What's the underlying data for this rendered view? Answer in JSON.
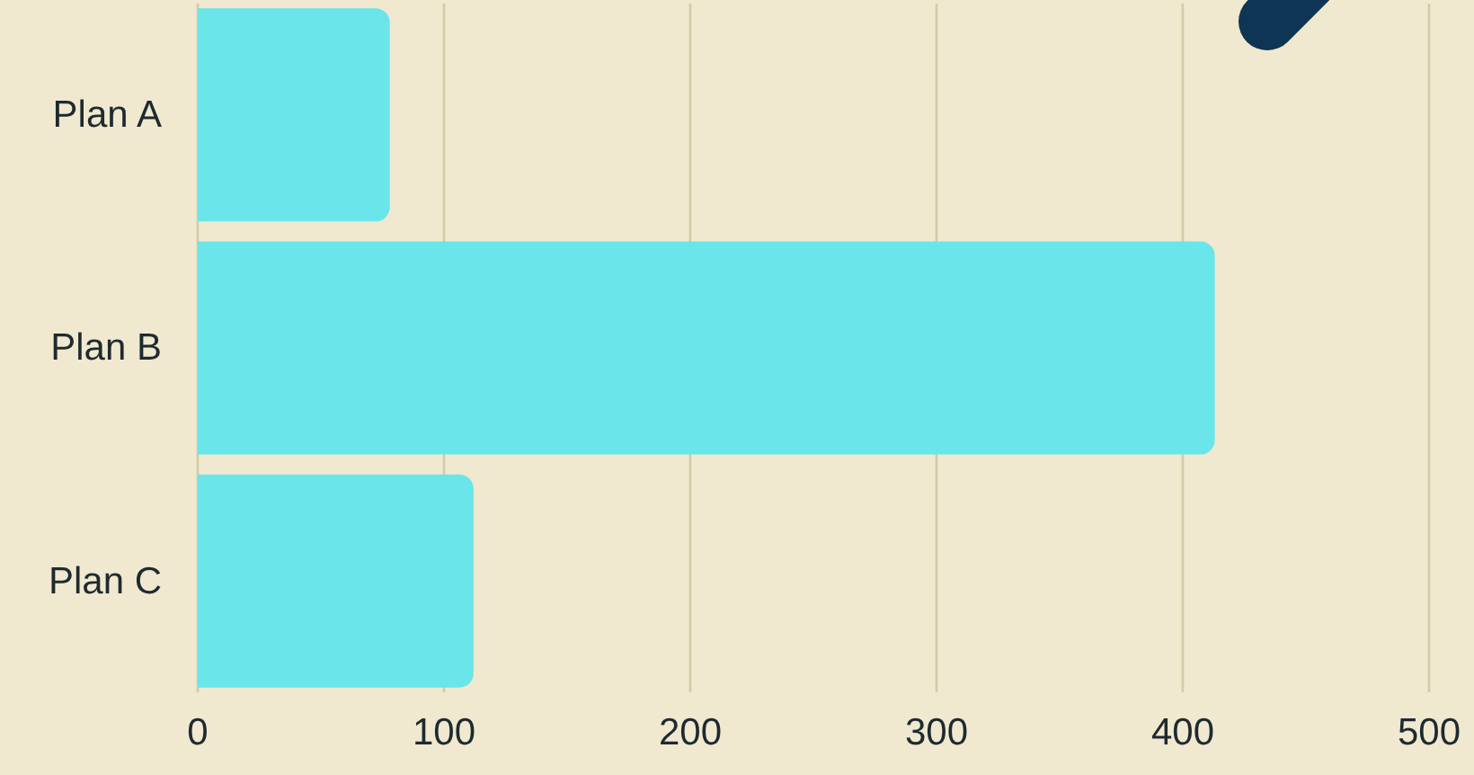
{
  "chart_data": {
    "type": "bar",
    "orientation": "horizontal",
    "categories": [
      "Plan A",
      "Plan B",
      "Plan C"
    ],
    "values": [
      78,
      413,
      112
    ],
    "color": "#6ae5e9",
    "xlim": [
      0,
      500
    ],
    "xticks": [
      0,
      100,
      200,
      300,
      400,
      500
    ],
    "grid": "x"
  }
}
